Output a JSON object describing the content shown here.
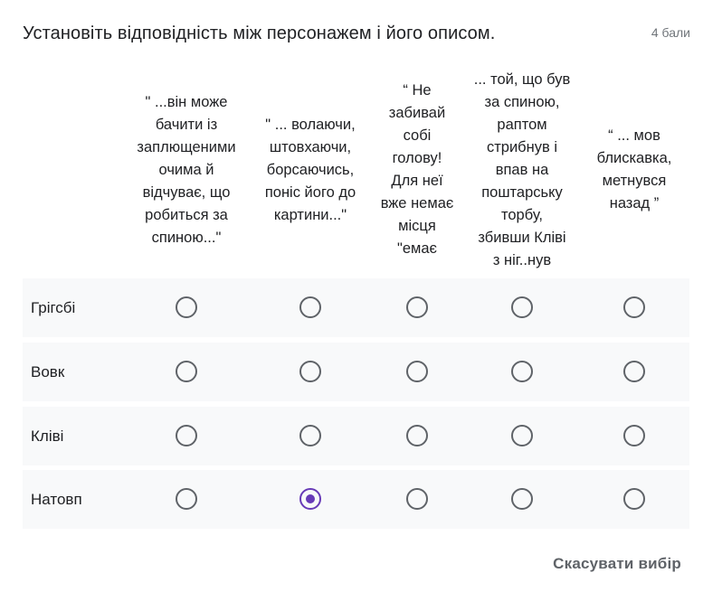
{
  "question": {
    "title": "Установіть відповідність між персонажем і його описом.",
    "points": "4 бали"
  },
  "columns": [
    {
      "label": "\" ...він може\nбачити із\nзаплющеними\nочима й\nвідчуває,  що\nробиться за\nспиною...\""
    },
    {
      "label": "\" ... волаючи,\nштовхаючи,\nборсаючись,\nпоніс його до\nкартини...\""
    },
    {
      "label": "“ Не\nзабивай\nсобі\nголову!\nДля неї\nвже немає\nмісця\n\"емає"
    },
    {
      "label": "... той, що був\nза спиною,\nраптом\nстрибнув і\nвпав на\nпоштарську\nторбу,\nзбивши Кліві\nз ніг..нув"
    },
    {
      "label": "“ ... мов\nблискавка,\nметнувся\nназад ”"
    }
  ],
  "rows": [
    {
      "label": "Грігсбі",
      "selected": null
    },
    {
      "label": "Вовк",
      "selected": null
    },
    {
      "label": "Кліві",
      "selected": null
    },
    {
      "label": "Натовп",
      "selected": 1
    }
  ],
  "actions": {
    "clear_label": "Скасувати вибір"
  },
  "colors": {
    "accent": "#673ab7",
    "row_background": "#f8f9fa",
    "radio_border": "#5f6368"
  }
}
